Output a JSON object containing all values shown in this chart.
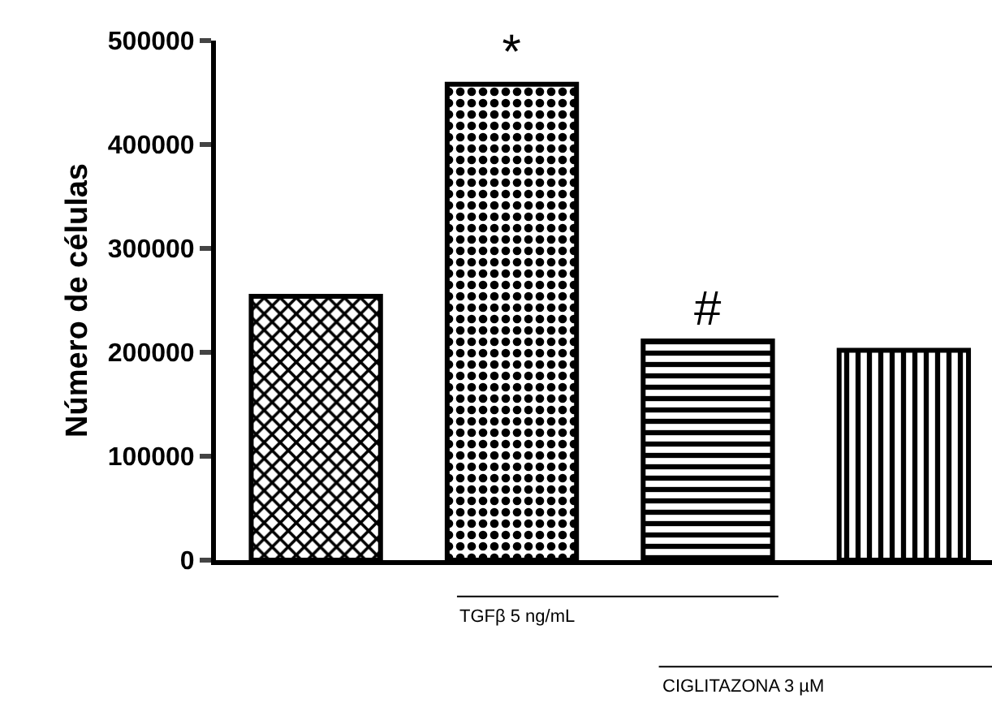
{
  "chart_data": {
    "type": "bar",
    "ylabel": "Número de células",
    "categories": [
      null,
      null,
      null,
      null
    ],
    "values": [
      254000,
      458000,
      211000,
      202000
    ],
    "colors": [
      "#000000",
      "#000000",
      "#000000",
      "#000000"
    ],
    "value_labels": [
      null,
      "*",
      "#",
      null
    ],
    "ylim": [
      0,
      500000
    ],
    "yticks": [
      0,
      100000,
      200000,
      300000,
      400000,
      500000
    ],
    "grid": false,
    "legend": false,
    "annotations": [
      "TGFβ 5 ng/mL",
      "CIGLITAZONA 3 µM"
    ]
  }
}
